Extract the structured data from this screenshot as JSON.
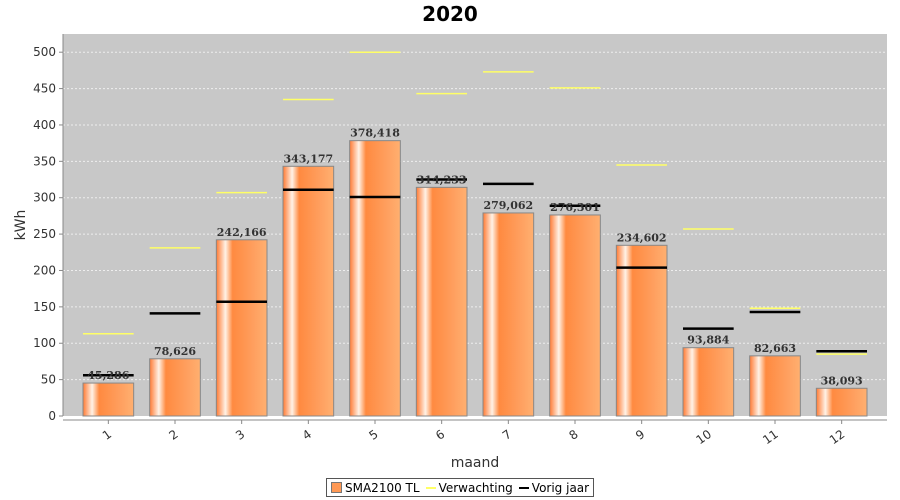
{
  "chart_data": {
    "type": "bar",
    "title": "2020",
    "xlabel": "maand",
    "ylabel": "kWh",
    "ylim": [
      0,
      525
    ],
    "yticks": [
      0,
      50,
      100,
      150,
      200,
      250,
      300,
      350,
      400,
      450,
      500
    ],
    "categories": [
      "1",
      "2",
      "3",
      "4",
      "5",
      "6",
      "7",
      "8",
      "9",
      "10",
      "11",
      "12"
    ],
    "grid": true,
    "legend_position": "bottom",
    "series": [
      {
        "name": "SMA2100 TL",
        "kind": "bar",
        "color": "#ff9955",
        "values": [
          45.286,
          78.626,
          242.166,
          343.177,
          378.418,
          314.233,
          279.062,
          276.301,
          234.602,
          93.884,
          82.663,
          38.093
        ],
        "labels": [
          "45,286",
          "78,626",
          "242,166",
          "343,177",
          "378,418",
          "314,233",
          "279,062",
          "276,301",
          "234,602",
          "93,884",
          "82,663",
          "38,093"
        ]
      },
      {
        "name": "Verwachting",
        "kind": "marker",
        "color": "#ffff66",
        "values": [
          113,
          231,
          307,
          435,
          500,
          443,
          473,
          451,
          345,
          257,
          148,
          85
        ]
      },
      {
        "name": "Vorig jaar",
        "kind": "marker",
        "color": "#000000",
        "values": [
          56,
          141,
          157,
          311,
          301,
          325,
          319,
          289,
          204,
          120,
          143,
          89
        ]
      }
    ]
  }
}
